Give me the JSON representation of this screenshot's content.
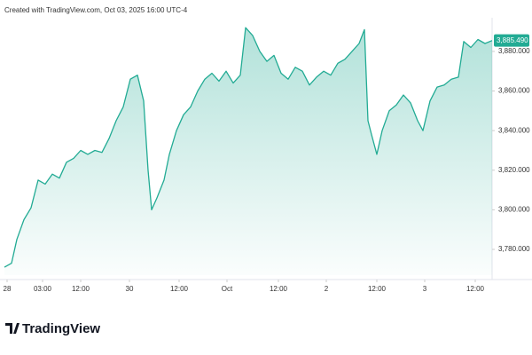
{
  "chart_data": {
    "type": "area",
    "caption": "Created with TradingView.com, Oct 03, 2025 16:00 UTC-4",
    "brand": "TradingView",
    "color": "#22ab94",
    "x": [
      0,
      8,
      14,
      22,
      30,
      38,
      46,
      54,
      62,
      70,
      78,
      86,
      94,
      102,
      110,
      118,
      126,
      134,
      142,
      150,
      157,
      162,
      166,
      172,
      180,
      186,
      194,
      202,
      210,
      218,
      226,
      234,
      242,
      250,
      258,
      266,
      272,
      280,
      288,
      296,
      304,
      312,
      320,
      328,
      336,
      344,
      352,
      360,
      368,
      376,
      384,
      392,
      400,
      406,
      410,
      414,
      420,
      426,
      434,
      442,
      450,
      458,
      466,
      472,
      480,
      488,
      496,
      504,
      512,
      518,
      526,
      534,
      542,
      550
    ],
    "values": [
      3771,
      3773,
      3785,
      3795,
      3801,
      3815,
      3813,
      3818,
      3816,
      3824,
      3826,
      3830,
      3828,
      3830,
      3829,
      3836,
      3845,
      3852,
      3866,
      3868,
      3855,
      3820,
      3800,
      3806,
      3815,
      3828,
      3840,
      3848,
      3852,
      3860,
      3866,
      3869,
      3865,
      3870,
      3864,
      3868,
      3892,
      3888,
      3880,
      3875,
      3878,
      3869,
      3866,
      3872,
      3870,
      3863,
      3867,
      3870,
      3868,
      3874,
      3876,
      3880,
      3884,
      3891,
      3845,
      3838,
      3828,
      3840,
      3850,
      3853,
      3858,
      3854,
      3845,
      3840,
      3855,
      3862,
      3863,
      3866,
      3867,
      3885,
      3882,
      3886,
      3884,
      3885.49
    ],
    "last_value_label": "3,885.490",
    "xlim": [
      0,
      550
    ],
    "xticks": [
      {
        "value": 3,
        "label": "28"
      },
      {
        "value": 43,
        "label": "03:00"
      },
      {
        "value": 86,
        "label": "12:00"
      },
      {
        "value": 141,
        "label": "30"
      },
      {
        "value": 197,
        "label": "12:00"
      },
      {
        "value": 251,
        "label": "Oct"
      },
      {
        "value": 309,
        "label": "12:00"
      },
      {
        "value": 363,
        "label": "2"
      },
      {
        "value": 420,
        "label": "12:00"
      },
      {
        "value": 474,
        "label": "3"
      },
      {
        "value": 531,
        "label": "12:00"
      }
    ],
    "ylim": [
      3767,
      3897
    ],
    "yticks": [
      {
        "value": 3780,
        "label": "3,780.000"
      },
      {
        "value": 3800,
        "label": "3,800.000"
      },
      {
        "value": 3820,
        "label": "3,820.000"
      },
      {
        "value": 3840,
        "label": "3,840.000"
      },
      {
        "value": 3860,
        "label": "3,860.000"
      },
      {
        "value": 3880,
        "label": "3,880.000"
      }
    ]
  }
}
